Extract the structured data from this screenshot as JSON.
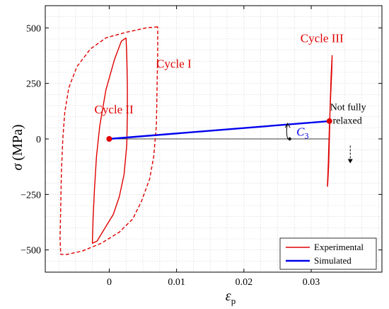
{
  "chart_data": {
    "type": "line",
    "xlabel_symbol": "ε",
    "xlabel_sub": "p",
    "ylabel_symbol": "σ",
    "ylabel_unit": "(MPa)",
    "xlim": [
      -0.0095,
      0.0405
    ],
    "ylim": [
      -600,
      600
    ],
    "xticks": [
      0,
      0.01,
      0.02,
      0.03
    ],
    "xtick_labels": [
      "0",
      "0.01",
      "0.02",
      "0.03"
    ],
    "yticks": [
      -500,
      -250,
      0,
      250,
      500
    ],
    "ytick_labels": [
      "−500",
      "−250",
      "0",
      "250",
      "500"
    ],
    "grid": true,
    "legend_position": "bottom-right",
    "colors": {
      "experimental": "#e00000",
      "simulated": "#0000ee",
      "reference": "#000000",
      "grid": "#d0d0d0"
    },
    "series": [
      {
        "name": "Experimental",
        "style": "solid",
        "cycle": "Cycle II",
        "points": [
          [
            0.0025,
            455
          ],
          [
            0.0018,
            440
          ],
          [
            0.0008,
            360
          ],
          [
            -0.0005,
            220
          ],
          [
            -0.0014,
            60
          ],
          [
            -0.0019,
            -80
          ],
          [
            -0.0022,
            -230
          ],
          [
            -0.0024,
            -360
          ],
          [
            -0.0025,
            -470
          ],
          [
            -0.0018,
            -460
          ],
          [
            -0.0006,
            -400
          ],
          [
            0.0006,
            -340
          ],
          [
            0.0015,
            -260
          ],
          [
            0.0022,
            -160
          ],
          [
            0.0026,
            -30
          ],
          [
            0.0027,
            100
          ],
          [
            0.0027,
            250
          ],
          [
            0.0026,
            380
          ],
          [
            0.0025,
            455
          ]
        ]
      },
      {
        "style": "dashed",
        "cycle": "Cycle I",
        "points": [
          [
            0.0072,
            505
          ],
          [
            0.0055,
            500
          ],
          [
            0.0025,
            480
          ],
          [
            -0.0005,
            455
          ],
          [
            -0.0028,
            405
          ],
          [
            -0.0048,
            325
          ],
          [
            -0.006,
            230
          ],
          [
            -0.0066,
            120
          ],
          [
            -0.0069,
            0
          ],
          [
            -0.0071,
            -150
          ],
          [
            -0.0072,
            -300
          ],
          [
            -0.0073,
            -450
          ],
          [
            -0.0072,
            -520
          ],
          [
            -0.0062,
            -520
          ],
          [
            -0.004,
            -505
          ],
          [
            -0.0012,
            -470
          ],
          [
            0.0015,
            -420
          ],
          [
            0.0035,
            -360
          ],
          [
            0.0048,
            -280
          ],
          [
            0.006,
            -180
          ],
          [
            0.0066,
            -80
          ],
          [
            0.007,
            60
          ],
          [
            0.0071,
            220
          ],
          [
            0.0072,
            400
          ],
          [
            0.0072,
            505
          ]
        ]
      },
      {
        "style": "solid",
        "cycle": "Cycle III",
        "points": [
          [
            0.0324,
            -215
          ],
          [
            0.03255,
            -100
          ],
          [
            0.0327,
            50
          ],
          [
            0.0329,
            200
          ],
          [
            0.03305,
            310
          ],
          [
            0.0331,
            375
          ],
          [
            0.03295,
            280
          ],
          [
            0.0328,
            140
          ],
          [
            0.0327,
            0
          ],
          [
            0.0326,
            -110
          ],
          [
            0.03245,
            -200
          ],
          [
            0.0324,
            -215
          ]
        ]
      },
      {
        "name": "Simulated",
        "style": "solid",
        "points": [
          [
            0,
            0
          ],
          [
            0.0327,
            80
          ]
        ]
      }
    ],
    "markers": [
      {
        "x": 0,
        "y": 0
      },
      {
        "x": 0.0327,
        "y": 80
      }
    ],
    "reference_line": {
      "points": [
        [
          0,
          0
        ],
        [
          0.0327,
          0
        ]
      ],
      "marker": [
        0.0268,
        0
      ]
    },
    "angle_arrow": {
      "x": 0.0265,
      "from_y": 0,
      "to_y": 70
    },
    "relax_arrow": {
      "x": 0.0358,
      "from_y": -30,
      "to_y": -110
    },
    "annotations": [
      {
        "id": "cycle1",
        "text": "Cycle I",
        "x": 0.007,
        "y": 320
      },
      {
        "id": "cycle2",
        "text": "Cycle II",
        "x": -0.0022,
        "y": 115
      },
      {
        "id": "cycle3",
        "text": "Cycle III",
        "x": 0.0284,
        "y": 435
      },
      {
        "id": "not_fully",
        "text": "Not fully",
        "x": 0.0328,
        "y": 130
      },
      {
        "id": "relaxed",
        "text": "relaxed",
        "x": 0.0332,
        "y": 68
      }
    ],
    "c3_label": {
      "symbol": "C",
      "sub": "3",
      "x": 0.0278,
      "y": 15
    },
    "legend": [
      "Experimental",
      "Simulated"
    ]
  }
}
